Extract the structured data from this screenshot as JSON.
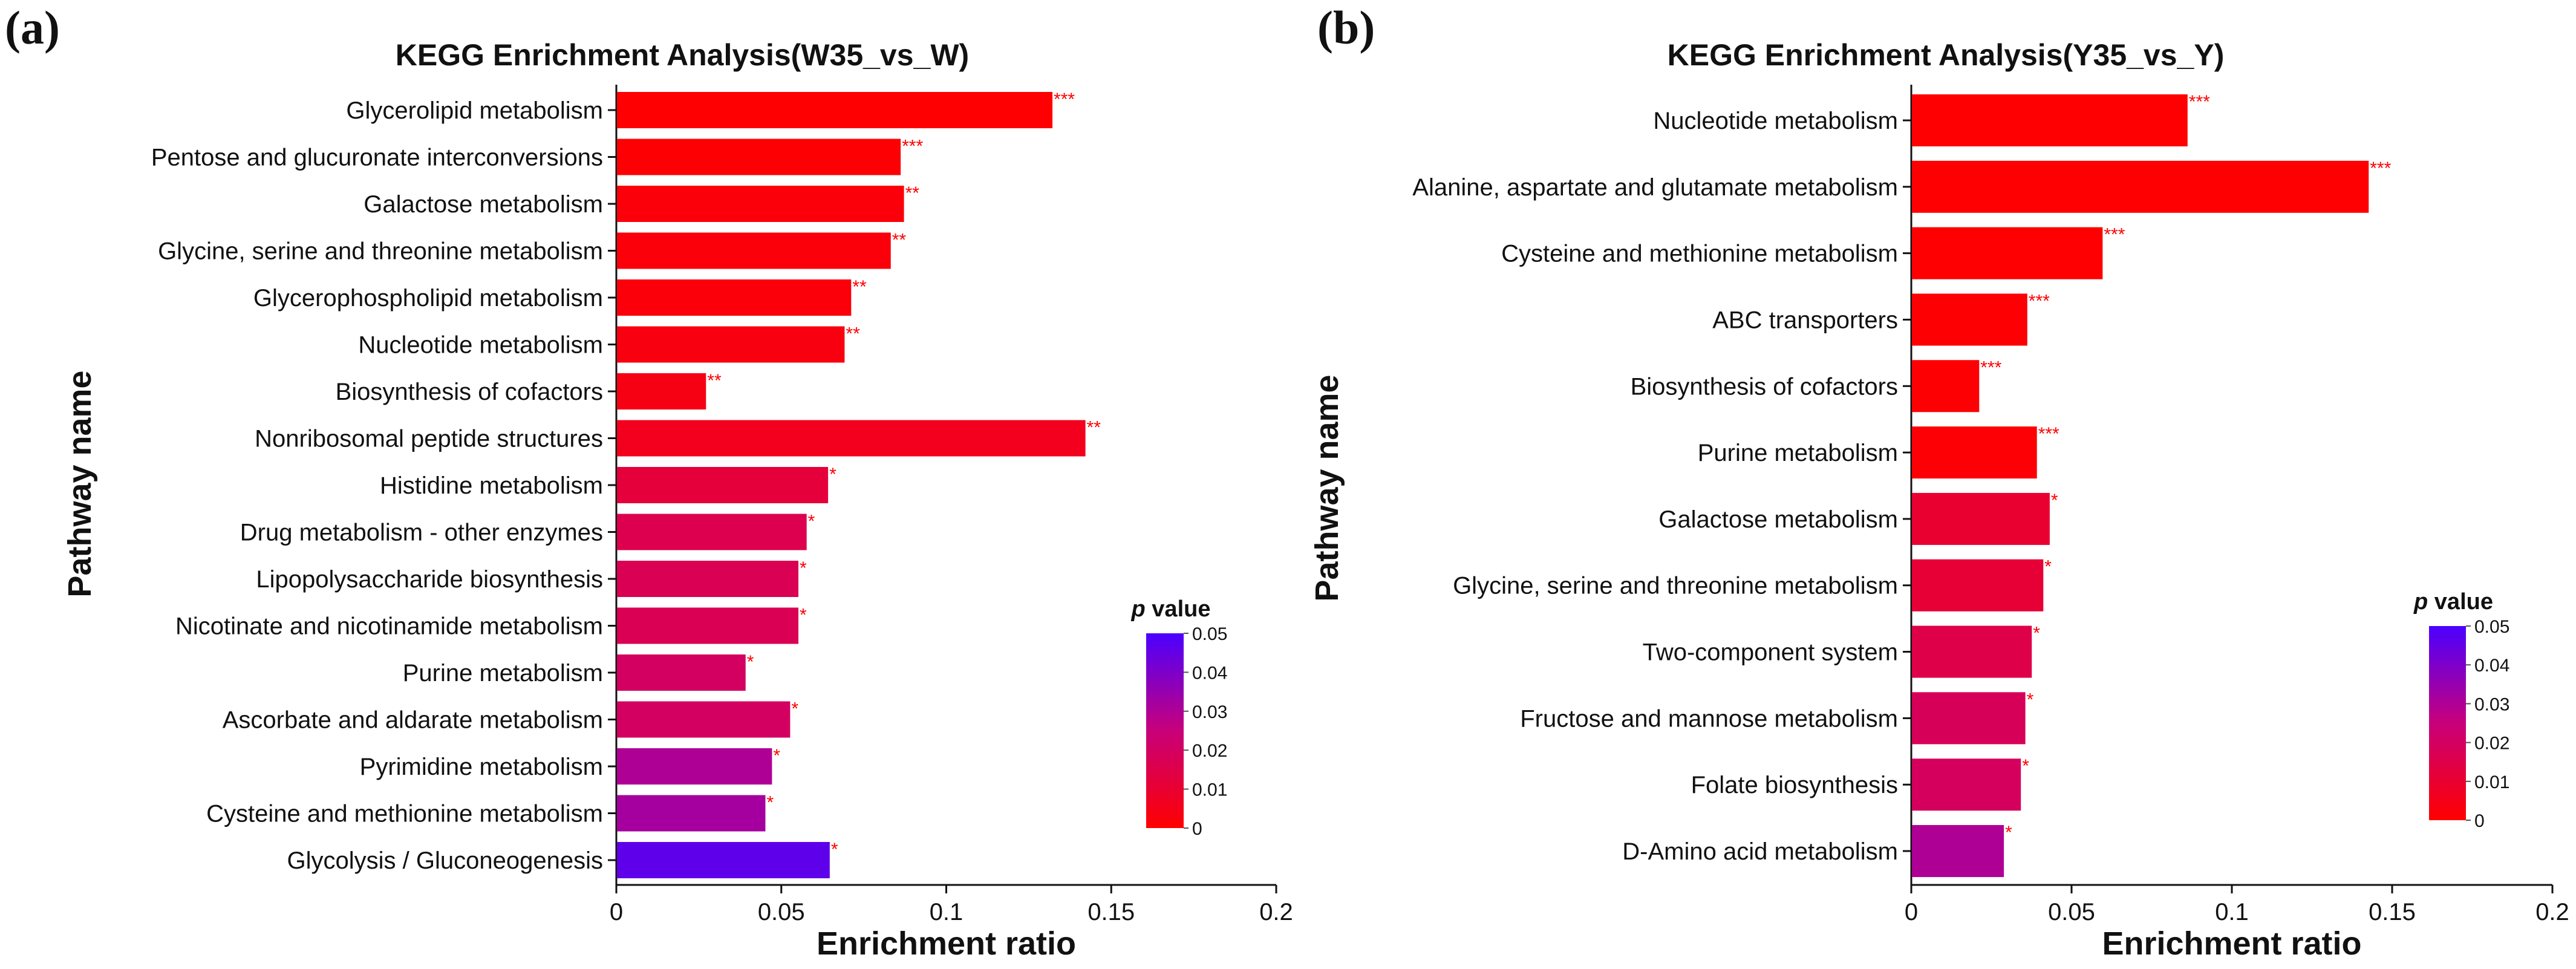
{
  "chart_data": [
    {
      "type": "bar",
      "orientation": "horizontal",
      "panel_label": "(a)",
      "title": "KEGG Enrichment Analysis(W35_vs_W)",
      "xlabel": "Enrichment ratio",
      "ylabel": "Pathway name",
      "xlim": [
        0,
        0.2
      ],
      "xticks": [
        "0",
        "0.05",
        "0.1",
        "0.15",
        "0.2"
      ],
      "categories": [
        "Glycerolipid metabolism",
        "Pentose and glucuronate interconversions",
        "Galactose metabolism",
        "Glycine, serine and threonine metabolism",
        "Glycerophospholipid metabolism",
        "Nucleotide metabolism",
        "Biosynthesis of cofactors",
        "Nonribosomal peptide structures",
        "Histidine metabolism",
        "Drug metabolism - other enzymes",
        "Lipopolysaccharide biosynthesis",
        "Nicotinate and nicotinamide metabolism",
        "Purine metabolism",
        "Ascorbate and aldarate metabolism",
        "Pyrimidine metabolism",
        "Cysteine and methionine metabolism",
        "Glycolysis / Gluconeogenesis"
      ],
      "values": [
        0.132,
        0.086,
        0.087,
        0.083,
        0.071,
        0.069,
        0.027,
        0.142,
        0.064,
        0.0575,
        0.055,
        0.055,
        0.039,
        0.0525,
        0.047,
        0.045,
        0.0645
      ],
      "p_values": [
        0.0005,
        0.0008,
        0.002,
        0.002,
        0.002,
        0.003,
        0.004,
        0.006,
        0.012,
        0.016,
        0.017,
        0.017,
        0.02,
        0.02,
        0.03,
        0.032,
        0.046
      ],
      "significance": [
        "***",
        "***",
        "**",
        "**",
        "**",
        "**",
        "**",
        "**",
        "*",
        "*",
        "*",
        "*",
        "*",
        "*",
        "*",
        "*",
        "*"
      ],
      "colorbar": {
        "title_italic": "p",
        "title": "value",
        "range": [
          0,
          0.05
        ],
        "ticks": [
          "0.05",
          "0.04",
          "0.03",
          "0.02",
          "0.01",
          "0"
        ],
        "low_color": "#ff0000",
        "high_color": "#4b00ff"
      }
    },
    {
      "type": "bar",
      "orientation": "horizontal",
      "panel_label": "(b)",
      "title": "KEGG Enrichment Analysis(Y35_vs_Y)",
      "xlabel": "Enrichment ratio",
      "ylabel": "Pathway name",
      "xlim": [
        0,
        0.2
      ],
      "xticks": [
        "0",
        "0.05",
        "0.1",
        "0.15",
        "0.2"
      ],
      "categories": [
        "Nucleotide metabolism",
        "Alanine, aspartate and glutamate metabolism",
        "Cysteine and methionine metabolism",
        "ABC transporters",
        "Biosynthesis of cofactors",
        "Purine metabolism",
        "Galactose metabolism",
        "Glycine, serine and threonine metabolism",
        "Two-component system",
        "Fructose and mannose metabolism",
        "Folate biosynthesis",
        "D-Amino acid metabolism"
      ],
      "values": [
        0.086,
        0.1425,
        0.0595,
        0.036,
        0.021,
        0.039,
        0.043,
        0.041,
        0.0374,
        0.0354,
        0.034,
        0.0287
      ],
      "p_values": [
        0.0005,
        0.0005,
        0.0005,
        0.0008,
        0.0008,
        0.001,
        0.01,
        0.011,
        0.015,
        0.018,
        0.019,
        0.03
      ],
      "significance": [
        "***",
        "***",
        "***",
        "***",
        "***",
        "***",
        "*",
        "*",
        "*",
        "*",
        "*",
        "*"
      ],
      "colorbar": {
        "title_italic": "p",
        "title": "value",
        "range": [
          0,
          0.05
        ],
        "ticks": [
          "0.05",
          "0.04",
          "0.03",
          "0.02",
          "0.01",
          "0"
        ],
        "low_color": "#ff0000",
        "high_color": "#4b00ff"
      }
    }
  ]
}
